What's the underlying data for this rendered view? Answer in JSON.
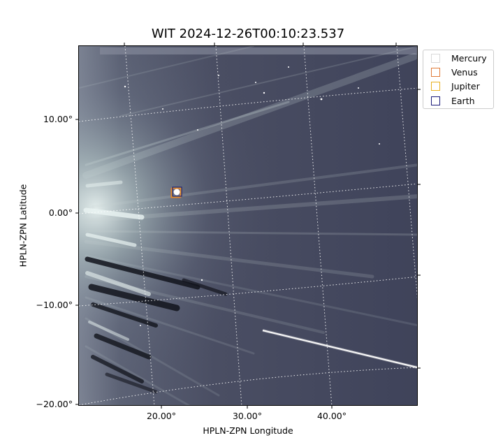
{
  "figure": {
    "title": "WIT 2024-12-26T00:10:23.537",
    "xlabel": "HPLN-ZPN Longitude",
    "ylabel": "HPLN-ZPN Latitude",
    "x_ticks": [
      "20.00°",
      "30.00°",
      "40.00°"
    ],
    "y_ticks": [
      "10.00°",
      "0.00°",
      "−10.00°",
      "−20.00°"
    ],
    "colormap": "bone",
    "grid": "dotted white coordinate grid",
    "legend_placement": "outside-right-top",
    "legend": [
      {
        "label": "Mercury",
        "color": "#d9d9d9"
      },
      {
        "label": "Venus",
        "color": "#e07b39"
      },
      {
        "label": "Jupiter",
        "color": "#e8b020"
      },
      {
        "label": "Earth",
        "color": "#1a1a7a"
      }
    ]
  }
}
